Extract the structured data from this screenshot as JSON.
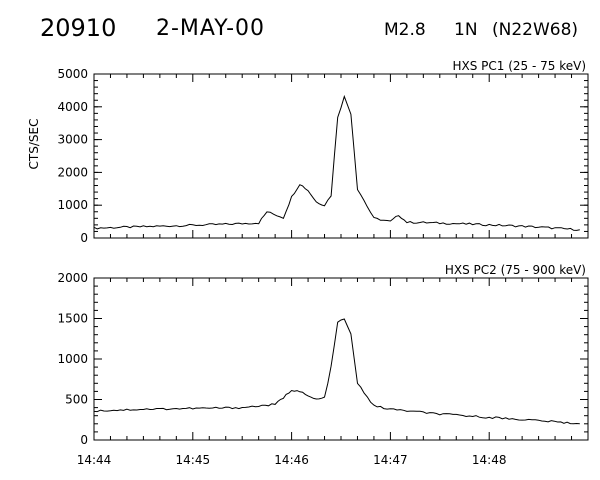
{
  "header": {
    "event": "20910",
    "date": "2-MAY-00",
    "flare_class": "M2.8",
    "importance": "1N",
    "location": "(N22W68)"
  },
  "chart_data": [
    {
      "type": "line",
      "title": "HXS PC1 (25 - 75 keV)",
      "ylabel": "CTS/SEC",
      "xlabel": "",
      "ylim": [
        0,
        5000
      ],
      "yticks": [
        "0",
        "1000",
        "2000",
        "3000",
        "4000",
        "5000"
      ],
      "xlim": [
        "14:44",
        "14:49"
      ],
      "series": [
        {
          "x": [
            "14:44:00",
            "14:44:20",
            "14:44:40",
            "14:45:00",
            "14:45:20",
            "14:45:40",
            "14:45:45",
            "14:45:55",
            "14:46:00",
            "14:46:05",
            "14:46:10",
            "14:46:15",
            "14:46:20",
            "14:46:24",
            "14:46:28",
            "14:46:32",
            "14:46:36",
            "14:46:40",
            "14:46:50",
            "14:47:00",
            "14:47:05",
            "14:47:10",
            "14:47:20",
            "14:47:40",
            "14:48:00",
            "14:48:20",
            "14:48:40",
            "14:48:55"
          ],
          "values": [
            300,
            330,
            360,
            390,
            420,
            460,
            800,
            620,
            1250,
            1650,
            1450,
            1100,
            1000,
            1300,
            3700,
            4300,
            3800,
            1500,
            600,
            500,
            700,
            480,
            470,
            440,
            400,
            360,
            300,
            250
          ]
        }
      ]
    },
    {
      "type": "line",
      "title": "HXS PC2 (75 - 900 keV)",
      "ylabel": "",
      "xlabel": "",
      "ylim": [
        0,
        2000
      ],
      "yticks": [
        "0",
        "500",
        "1000",
        "1500",
        "2000"
      ],
      "xlim": [
        "14:44",
        "14:49"
      ],
      "xticks": [
        "14:44",
        "14:45",
        "14:46",
        "14:47",
        "14:48"
      ],
      "series": [
        {
          "x": [
            "14:44:00",
            "14:44:30",
            "14:45:00",
            "14:45:30",
            "14:45:50",
            "14:45:55",
            "14:46:00",
            "14:46:05",
            "14:46:10",
            "14:46:15",
            "14:46:20",
            "14:46:24",
            "14:46:28",
            "14:46:32",
            "14:46:36",
            "14:46:40",
            "14:46:50",
            "14:47:00",
            "14:47:30",
            "14:48:00",
            "14:48:30",
            "14:48:55"
          ],
          "values": [
            360,
            380,
            390,
            400,
            440,
            520,
            620,
            600,
            540,
            500,
            520,
            900,
            1450,
            1500,
            1300,
            700,
            420,
            380,
            320,
            280,
            240,
            200
          ]
        }
      ]
    }
  ]
}
